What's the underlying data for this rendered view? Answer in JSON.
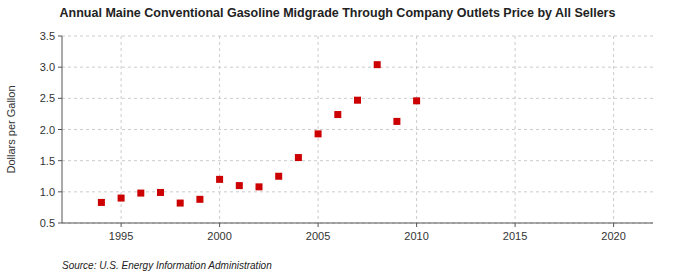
{
  "chart_data": {
    "type": "scatter",
    "title": "Annual Maine Conventional Gasoline Midgrade Through Company Outlets Price by All Sellers",
    "y_label": "Dollars per Gallon",
    "source": "Source: U.S. Energy Information Administration",
    "x": [
      1994,
      1995,
      1996,
      1997,
      1998,
      1999,
      2000,
      2001,
      2002,
      2003,
      2004,
      2005,
      2006,
      2007,
      2008,
      2009,
      2010
    ],
    "values": [
      0.83,
      0.9,
      0.98,
      0.99,
      0.82,
      0.88,
      1.2,
      1.1,
      1.08,
      1.25,
      1.55,
      1.93,
      2.24,
      2.47,
      3.04,
      2.13,
      2.46
    ],
    "xlim": [
      1992,
      2022
    ],
    "ylim": [
      0.5,
      3.5
    ],
    "xticks": [
      1995,
      2000,
      2005,
      2010,
      2015,
      2020
    ],
    "yticks": [
      0.5,
      {
        "value": 1,
        "label": "1.0"
      },
      1.5,
      {
        "value": 2,
        "label": "2.0"
      },
      2.5,
      {
        "value": 3,
        "label": "3.0"
      },
      3.5
    ],
    "color": "#cc0000",
    "marker": "square",
    "grid": true
  }
}
